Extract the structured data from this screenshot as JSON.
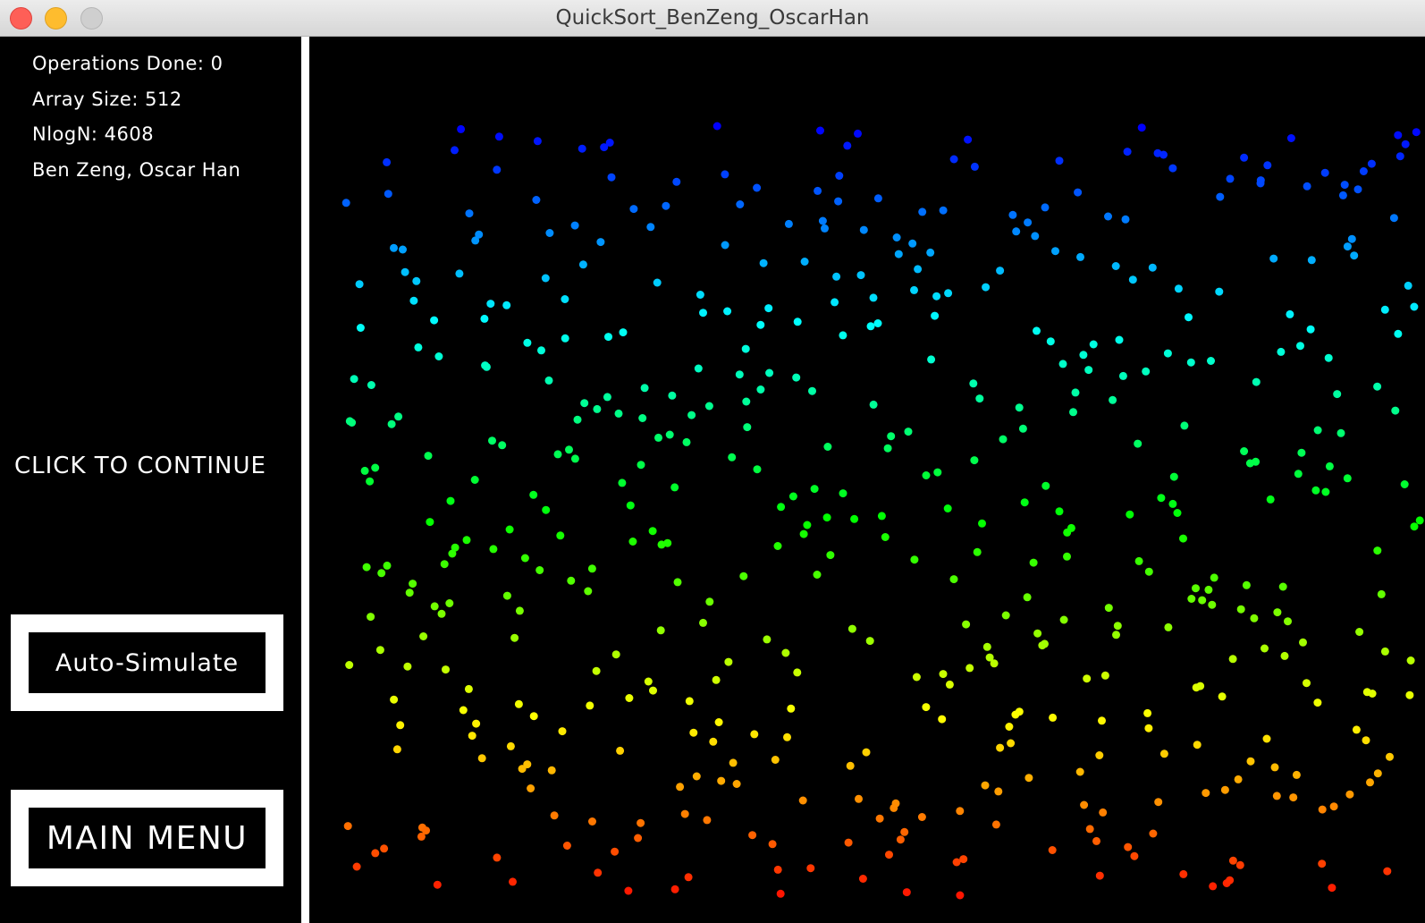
{
  "window": {
    "title": "QuickSort_BenZeng_OscarHan"
  },
  "stats": {
    "operations": "Operations Done: 0",
    "array_size": "Array Size: 512",
    "nlogn": "NlogN: 4608",
    "authors": "Ben Zeng, Oscar Han"
  },
  "prompt": "CLICK TO CONTINUE",
  "buttons": {
    "auto_simulate": "Auto-Simulate",
    "main_menu": "MAIN MENU"
  },
  "visualization": {
    "element_count": 512,
    "point_shape": "dot",
    "color_scheme": "hue by value: blue (high) to red (low)"
  }
}
